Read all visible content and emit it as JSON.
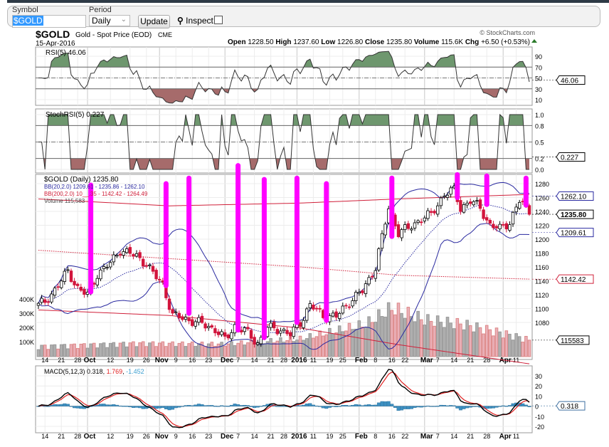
{
  "form": {
    "symbol_label": "Symbol",
    "symbol_value": "$GOLD",
    "period_label": "Period",
    "period_value": "Daily",
    "update_label": "Update",
    "inspect_label": "Inspect"
  },
  "header": {
    "symbol": "$GOLD",
    "name": "Gold - Spot Price (EOD)",
    "exchange": "CME",
    "date": "15-Apr-2016",
    "copyright": "© StockCharts.com",
    "open_label": "Open",
    "open": "1228.50",
    "high_label": "High",
    "high": "1237.60",
    "low_label": "Low",
    "low": "1226.80",
    "close_label": "Close",
    "close": "1235.80",
    "volume_label": "Volume",
    "volume": "115.6K",
    "chg_label": "Chg",
    "chg": "+6.50 (+0.53%)"
  },
  "colors": {
    "up_candle": "#ffffff",
    "down_candle": "#d2143c",
    "bb20": "#2a2aa0",
    "bb200": "#d0203a",
    "rsi_over": "#6e976e",
    "rsi_under": "#a66b6b",
    "macd": "#000000",
    "signal": "#e02020",
    "hist": "#3d8fc0",
    "annotation": "#ff00ff"
  },
  "chart_data": {
    "type": "candlestick",
    "title": "$GOLD Gold - Spot Price (EOD) CME",
    "panels": {
      "rsi": {
        "legend": "RSI(5) 46.06",
        "ticks": [
          "90",
          "70",
          "50",
          "30",
          "10"
        ],
        "tick_values": [
          90,
          70,
          50,
          30,
          10
        ],
        "badge": "46.06",
        "ylim": [
          0,
          100
        ]
      },
      "stochrsi": {
        "legend": "StochRSI(5) 0.227",
        "ticks": [
          "1.0",
          "0.8",
          "0.5",
          "0.2",
          "0.0"
        ],
        "tick_values": [
          1,
          0.8,
          0.5,
          0.2,
          0
        ],
        "badge": "0.227",
        "ylim": [
          0,
          1
        ]
      },
      "price": {
        "legend": "$GOLD (Daily) 1235.80",
        "bb20_legend": "BB(20,2.0) 1209.61 - 1235.86 - 1262.10",
        "bb200_legend": "BB(200,2.0) 10__.35 - 1142.42 - 1264.49",
        "volume_legend": "Volume 115,583",
        "ticks": [
          "1280",
          "1260",
          "1240",
          "1220",
          "1200",
          "1180",
          "1160",
          "1140",
          "1120",
          "1100",
          "1080"
        ],
        "tick_values": [
          1280,
          1260,
          1240,
          1220,
          1200,
          1180,
          1160,
          1140,
          1120,
          1100,
          1080
        ],
        "volume_ticks": [
          "400K",
          "300K",
          "200K",
          "100K"
        ],
        "volume_tick_values": [
          400,
          300,
          200,
          100
        ],
        "badges": {
          "bb20_upper": "1262.10",
          "close": "1235.80",
          "bb20_lower": "1209.61",
          "bb200_mid": "1142.42",
          "volume": "115583"
        },
        "ylim": [
          1070,
          1290
        ]
      },
      "macd": {
        "legend_name": "MACD(5,12,3)",
        "legend_macd": "0.318",
        "legend_signal": "1.769",
        "legend_hist": "-1.452",
        "ticks": [
          "30",
          "20",
          "10",
          "0",
          "-10",
          "-20"
        ],
        "tick_values": [
          30,
          20,
          10,
          0,
          -10,
          -20
        ],
        "badge": "0.318",
        "ylim": [
          -25,
          35
        ]
      }
    },
    "trading_days": 151,
    "close_keypoints": [
      [
        0,
        1105
      ],
      [
        2,
        1109
      ],
      [
        6,
        1134
      ],
      [
        9,
        1153
      ],
      [
        12,
        1130
      ],
      [
        15,
        1119
      ],
      [
        18,
        1150
      ],
      [
        22,
        1165
      ],
      [
        25,
        1185
      ],
      [
        30,
        1175
      ],
      [
        33,
        1165
      ],
      [
        35,
        1150
      ],
      [
        38,
        1135
      ],
      [
        41,
        1090
      ],
      [
        45,
        1085
      ],
      [
        50,
        1078
      ],
      [
        54,
        1070
      ],
      [
        57,
        1055
      ],
      [
        60,
        1075
      ],
      [
        63,
        1068
      ],
      [
        67,
        1050
      ],
      [
        70,
        1072
      ],
      [
        74,
        1070
      ],
      [
        77,
        1062
      ],
      [
        80,
        1080
      ],
      [
        83,
        1105
      ],
      [
        87,
        1090
      ],
      [
        91,
        1088
      ],
      [
        95,
        1110
      ],
      [
        99,
        1125
      ],
      [
        103,
        1160
      ],
      [
        107,
        1245
      ],
      [
        110,
        1210
      ],
      [
        113,
        1215
      ],
      [
        117,
        1230
      ],
      [
        120,
        1235
      ],
      [
        124,
        1265
      ],
      [
        127,
        1270
      ],
      [
        129,
        1245
      ],
      [
        132,
        1255
      ],
      [
        135,
        1245
      ],
      [
        138,
        1220
      ],
      [
        141,
        1215
      ],
      [
        144,
        1225
      ],
      [
        147,
        1255
      ],
      [
        149,
        1245
      ],
      [
        150,
        1235.8
      ]
    ],
    "volume_keypoints_k": [
      [
        0,
        70
      ],
      [
        30,
        90
      ],
      [
        57,
        85
      ],
      [
        80,
        120
      ],
      [
        100,
        220
      ],
      [
        108,
        330
      ],
      [
        118,
        250
      ],
      [
        130,
        220
      ],
      [
        140,
        170
      ],
      [
        150,
        115.6
      ]
    ],
    "bb200_keypoints": [
      [
        0,
        1258,
        1184,
        1098
      ],
      [
        40,
        1248,
        1172,
        1090
      ],
      [
        80,
        1252,
        1160,
        1072
      ],
      [
        110,
        1258,
        1148,
        1048
      ],
      [
        150,
        1264.49,
        1142.42,
        1020.35
      ]
    ],
    "x_ticks": [
      {
        "label": "14",
        "day": 2
      },
      {
        "label": "21",
        "day": 7
      },
      {
        "label": "28",
        "day": 12
      },
      {
        "label": "Oct",
        "day": 15,
        "bold": true
      },
      {
        "label": "12",
        "day": 22
      },
      {
        "label": "19",
        "day": 28
      },
      {
        "label": "26",
        "day": 33
      },
      {
        "label": "Nov",
        "day": 37,
        "bold": true
      },
      {
        "label": "9",
        "day": 42
      },
      {
        "label": "16",
        "day": 47
      },
      {
        "label": "23",
        "day": 52
      },
      {
        "label": "Dec",
        "day": 57,
        "bold": true
      },
      {
        "label": "7",
        "day": 61
      },
      {
        "label": "14",
        "day": 66
      },
      {
        "label": "21",
        "day": 71
      },
      {
        "label": "28",
        "day": 75
      },
      {
        "label": "2016",
        "day": 79,
        "bold": true
      },
      {
        "label": "11",
        "day": 84
      },
      {
        "label": "19",
        "day": 89
      },
      {
        "label": "25",
        "day": 93
      },
      {
        "label": "Feb",
        "day": 98,
        "bold": true
      },
      {
        "label": "8",
        "day": 103
      },
      {
        "label": "16",
        "day": 108
      },
      {
        "label": "22",
        "day": 112
      },
      {
        "label": "Mar",
        "day": 118,
        "bold": true
      },
      {
        "label": "7",
        "day": 122
      },
      {
        "label": "14",
        "day": 127
      },
      {
        "label": "21",
        "day": 132
      },
      {
        "label": "28",
        "day": 137
      },
      {
        "label": "Apr",
        "day": 142,
        "bold": true
      },
      {
        "label": "11",
        "day": 146
      }
    ],
    "annotations": [
      [
        16,
        1278,
        1124
      ],
      [
        39,
        1280,
        1133
      ],
      [
        46,
        1288,
        1093
      ],
      [
        61,
        1306,
        1069
      ],
      [
        69,
        1286,
        1058
      ],
      [
        79,
        1288,
        1080
      ],
      [
        88,
        1280,
        1083
      ],
      [
        108,
        1288,
        1204
      ],
      [
        128,
        1293,
        1260
      ],
      [
        137,
        1291,
        1250
      ],
      [
        149,
        1288,
        1249
      ]
    ]
  }
}
